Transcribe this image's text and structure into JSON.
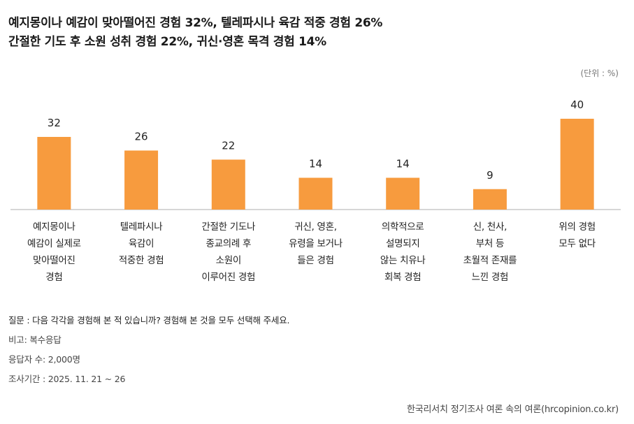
{
  "title": {
    "line1": "예지몽이나 예감이 맞아떨어진 경험 32%, 텔레파시나 육감 적중 경험 26%",
    "line2": "간절한 기도 후 소원 성취 경험 22%, 귀신·영혼 목격 경험 14%"
  },
  "unit": "(단위 : %)",
  "colors": {
    "bar": "#F79B3E",
    "baseline": "#c8c8c8"
  },
  "chart_data": {
    "type": "bar",
    "categories": [
      "예지몽이나\n예감이 실제로\n맞아떨어진\n경험",
      "텔레파시나\n육감이\n적중한 경험",
      "간절한 기도나\n종교의례 후\n소원이\n이루어진 경험",
      "귀신, 영혼,\n유령을 보거나\n들은 경험",
      "의학적으로\n설명되지\n않는 치유나\n회복 경험",
      "신, 천사,\n부처 등\n초월적 존재를\n느낀 경험",
      "위의 경험\n모두 없다"
    ],
    "values": [
      32,
      26,
      22,
      14,
      14,
      9,
      40
    ],
    "ylim": [
      0,
      48
    ],
    "unit": "%"
  },
  "footnotes": [
    "질문 : 다음 각각을 경험해 본 적 있습니까? 경험해 본 것을 모두 선택해 주세요.",
    "비고: 복수응답",
    "응답자 수: 2,000명",
    "조사기간 : 2025. 11. 21 ~ 26"
  ],
  "source": "한국리서치 정기조사 여론 속의 여론(hrcopinion.co.kr)"
}
